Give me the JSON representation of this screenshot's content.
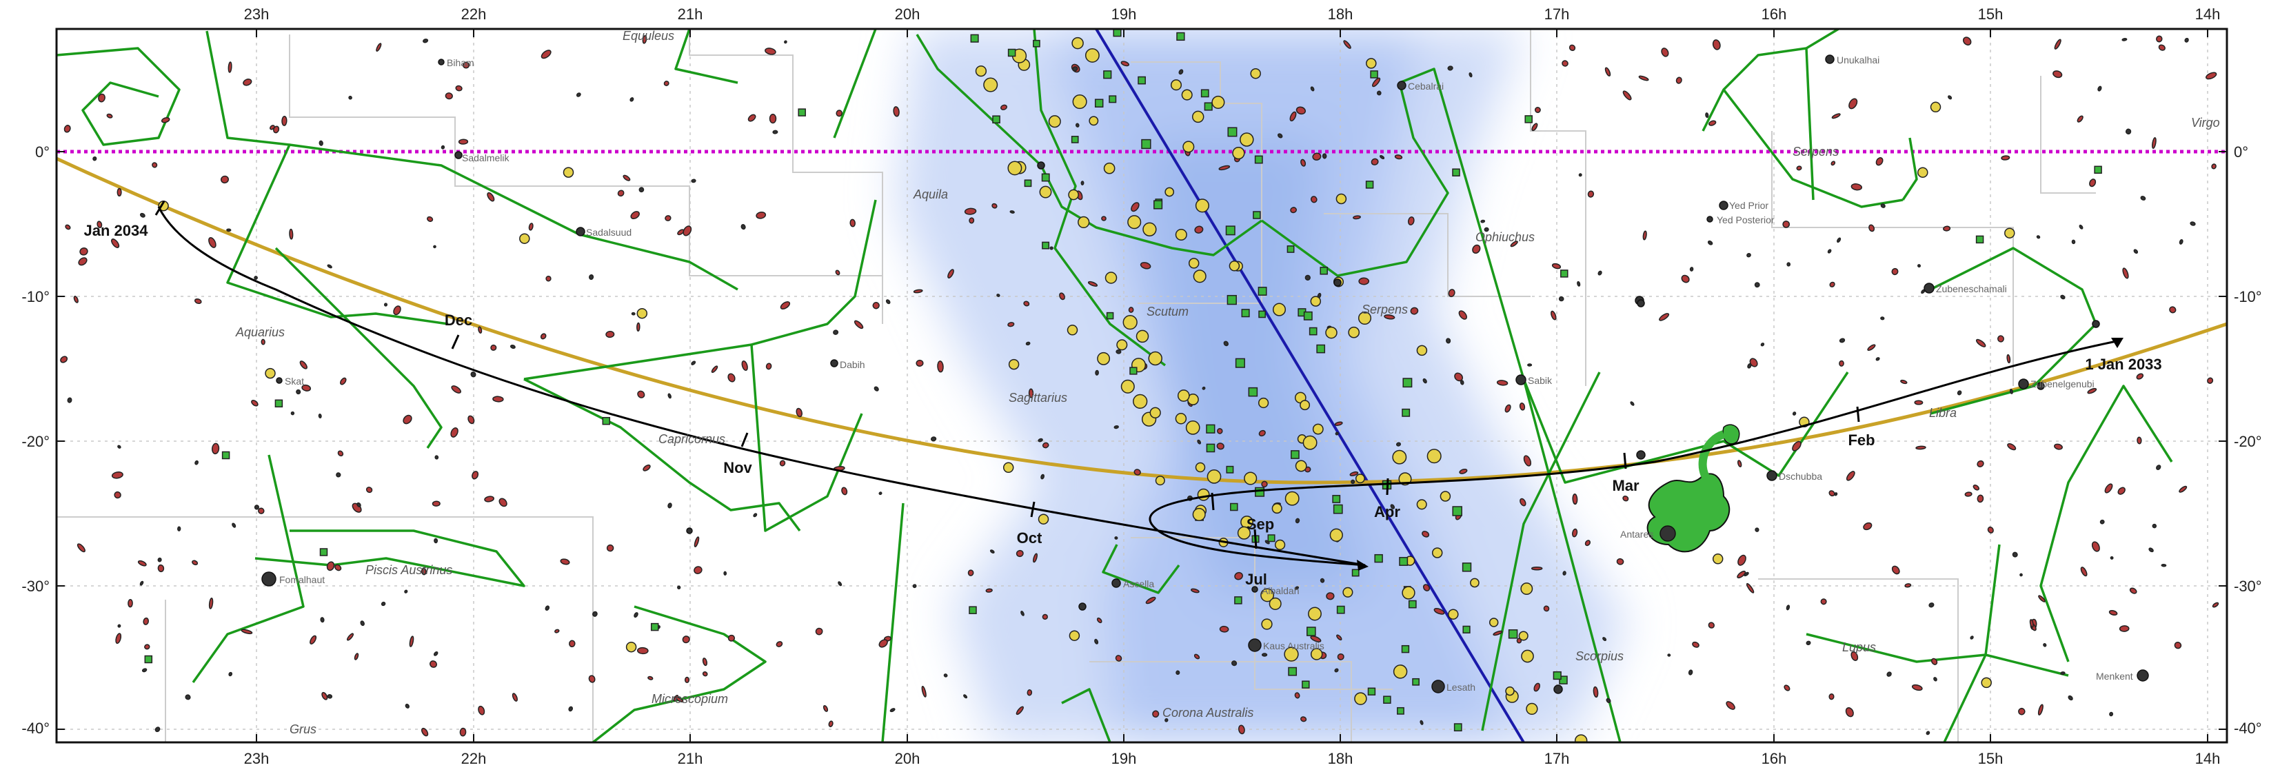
{
  "chart_data": {
    "type": "sky-chart",
    "ra_axis_labels": [
      "23h",
      "22h",
      "21h",
      "20h",
      "19h",
      "18h",
      "17h",
      "16h",
      "15h",
      "14h"
    ],
    "dec_axis_labels_left": [
      "0°",
      "-10°",
      "-20°",
      "-30°",
      "-40°"
    ],
    "dec_axis_labels_right": [
      "0°",
      "-10°",
      "-20°",
      "-30°",
      "-40°"
    ],
    "constellations": [
      "Equuleus",
      "Aquila",
      "Ophiuchus",
      "Serpens",
      "Serpens",
      "Virgo",
      "Scutum",
      "Sagittarius",
      "Aquarius",
      "Capricornus",
      "Piscis Austrinus",
      "Microscopium",
      "Grus",
      "Corona Australis",
      "Scorpius",
      "Lupus",
      "Libra"
    ],
    "stars": [
      "Biham",
      "Sadalmelik",
      "Sadalsuud",
      "Skat",
      "Dabih",
      "Fomalhaut",
      "Cebalrai",
      "Sabik",
      "Unukalhai",
      "Yed Prior",
      "Yed Posterior",
      "Zubeneschamali",
      "Zubenelgenubi",
      "Dschubba",
      "Antares",
      "Ascella",
      "Albaldah",
      "Kaus Australis",
      "Lesath",
      "Menkent"
    ],
    "path_labels": [
      "1 Jan 2033",
      "Feb",
      "Mar",
      "Apr",
      "Jul",
      "Sep",
      "Oct",
      "Nov",
      "Dec",
      "Jan 2034"
    ],
    "colors": {
      "ecliptic": "#c9a227",
      "equator": "#cc00cc",
      "galactic_plane": "#1a1aaa",
      "constellation_lines": "#1a9a1a",
      "track": "#000000",
      "milky_way": "#bcd0f5",
      "star_fill": "#b23a3a",
      "globular": "#e6d24a",
      "open_cluster": "#3cb53c"
    }
  }
}
